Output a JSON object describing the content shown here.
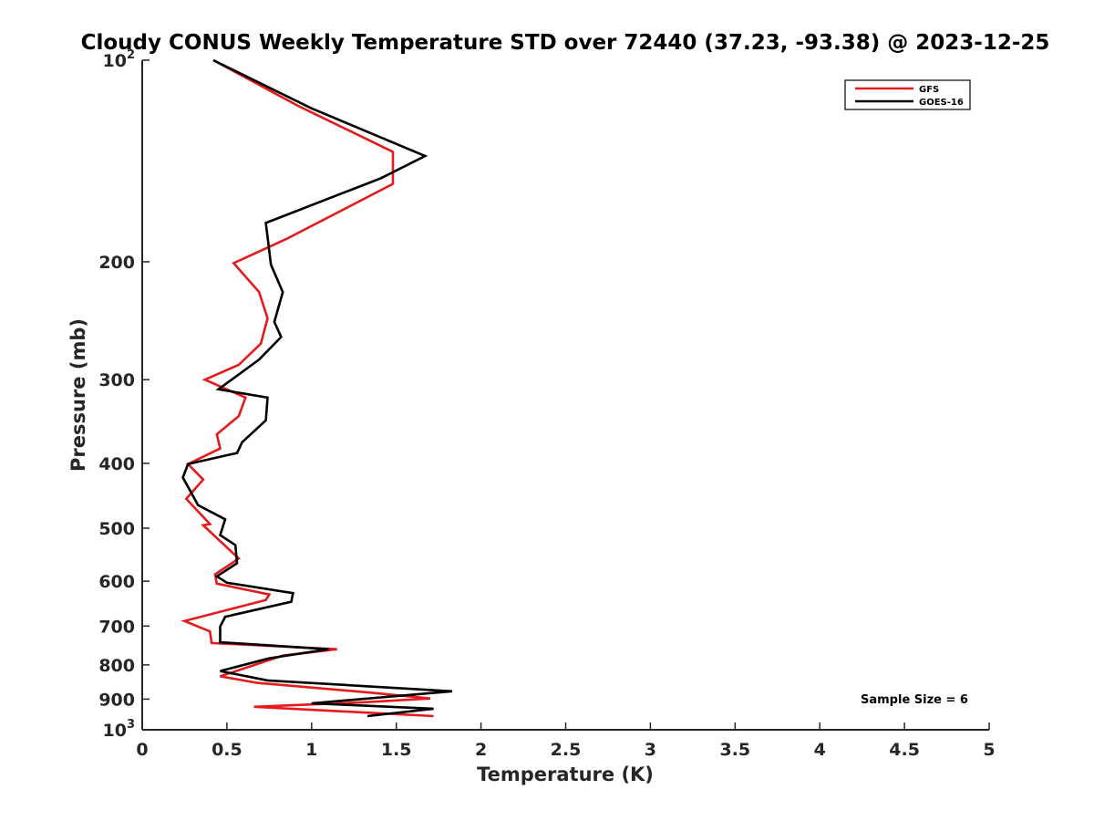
{
  "chart_data": {
    "type": "line",
    "title": "Cloudy CONUS Weekly Temperature STD over 72440 (37.23, -93.38) @ 2023-12-25",
    "xlabel": "Temperature (K)",
    "ylabel": "Pressure (mb)",
    "xlim": [
      0,
      5
    ],
    "ylim": [
      100,
      1000
    ],
    "yscale": "log",
    "y_reversed": true,
    "grid": false,
    "legend_position": "top-right",
    "x_ticks": [
      "0",
      "0.5",
      "1",
      "1.5",
      "2",
      "2.5",
      "3",
      "3.5",
      "4",
      "4.5",
      "5"
    ],
    "y_ticks": [
      {
        "value": 100,
        "label": "10",
        "sup": "2"
      },
      {
        "value": 200,
        "label": "200",
        "sup": ""
      },
      {
        "value": 300,
        "label": "300",
        "sup": ""
      },
      {
        "value": 400,
        "label": "400",
        "sup": ""
      },
      {
        "value": 500,
        "label": "500",
        "sup": ""
      },
      {
        "value": 600,
        "label": "600",
        "sup": ""
      },
      {
        "value": 700,
        "label": "700",
        "sup": ""
      },
      {
        "value": 800,
        "label": "800",
        "sup": ""
      },
      {
        "value": 900,
        "label": "900",
        "sup": ""
      },
      {
        "value": 1000,
        "label": "10",
        "sup": "3"
      }
    ],
    "series": [
      {
        "name": "GFS",
        "color": "#e41a1c",
        "x": [
          0.42,
          0.92,
          1.48,
          1.48,
          0.85,
          0.54,
          0.69,
          0.74,
          0.7,
          0.57,
          0.37,
          0.61,
          0.57,
          0.44,
          0.46,
          0.27,
          0.36,
          0.26,
          0.4,
          0.36,
          0.57,
          0.43,
          0.44,
          0.75,
          0.73,
          0.25,
          0.4,
          0.41,
          1.15,
          0.83,
          0.46,
          0.68,
          1.35,
          1.7,
          1.3,
          0.66,
          1.72
        ],
        "y": [
          100,
          117,
          137,
          153,
          185,
          201,
          222,
          243,
          265,
          285,
          300,
          319,
          340,
          362,
          380,
          401,
          423,
          452,
          493,
          495,
          555,
          586,
          605,
          628,
          640,
          688,
          713,
          742,
          758,
          775,
          832,
          851,
          880,
          898,
          910,
          924,
          954
        ]
      },
      {
        "name": "GOES-16",
        "color": "#000000",
        "x": [
          0.42,
          1.0,
          1.67,
          1.41,
          0.73,
          0.76,
          0.83,
          0.78,
          0.82,
          0.69,
          0.45,
          0.74,
          0.73,
          0.59,
          0.56,
          0.27,
          0.24,
          0.33,
          0.49,
          0.46,
          0.55,
          0.56,
          0.44,
          0.5,
          0.89,
          0.88,
          0.49,
          0.46,
          0.46,
          1.1,
          0.75,
          0.46,
          0.74,
          1.83,
          1.0,
          1.72,
          1.33
        ],
        "y": [
          100,
          118,
          139,
          150,
          175,
          202,
          222,
          246,
          259,
          280,
          310,
          319,
          345,
          372,
          386,
          401,
          420,
          462,
          485,
          512,
          530,
          564,
          590,
          603,
          625,
          644,
          678,
          701,
          740,
          758,
          782,
          817,
          844,
          876,
          913,
          930,
          954
        ]
      }
    ],
    "annotations": [
      "Sample Size = 6"
    ]
  }
}
